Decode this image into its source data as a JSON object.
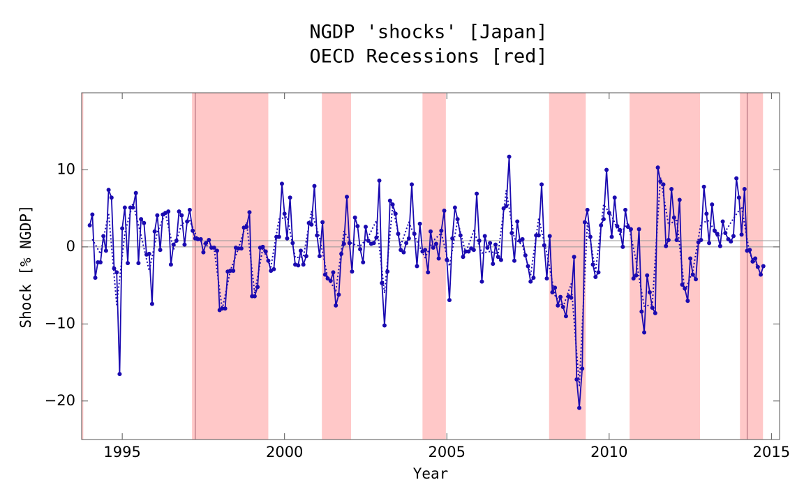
{
  "chart_data": {
    "type": "line",
    "title": "NGDP 'shocks' [Japan]",
    "subtitle": "OECD Recessions [red]",
    "xlabel": "Year",
    "ylabel": "Shock [% NGDP]",
    "xlim": [
      1993.75,
      2015.25
    ],
    "ylim": [
      -25,
      20
    ],
    "xticks": [
      1995,
      2000,
      2005,
      2010,
      2015
    ],
    "yticks": [
      {
        "value": -20,
        "label": "−20"
      },
      {
        "value": -10,
        "label": "−10"
      },
      0,
      10
    ],
    "recession_color": "#ffc8c8",
    "recessions": [
      [
        1993.75,
        1993.8
      ],
      [
        1997.15,
        1999.5
      ],
      [
        2001.15,
        2002.05
      ],
      [
        2004.25,
        2004.97
      ],
      [
        2008.15,
        2009.28
      ],
      [
        2010.63,
        2012.8
      ],
      [
        2014.03,
        2014.74
      ]
    ],
    "vlines": [
      1997.25,
      2014.25
    ],
    "hlines": [
      0,
      0.8
    ],
    "x": [
      1994,
      1994.08,
      1994.17,
      1994.25,
      1994.33,
      1994.42,
      1994.5,
      1994.58,
      1994.67,
      1994.75,
      1994.83,
      1994.92,
      1995,
      1995.08,
      1995.17,
      1995.25,
      1995.33,
      1995.42,
      1995.5,
      1995.58,
      1995.67,
      1995.75,
      1995.83,
      1995.92,
      1996,
      1996.08,
      1996.17,
      1996.25,
      1996.33,
      1996.42,
      1996.5,
      1996.58,
      1996.67,
      1996.75,
      1996.83,
      1996.92,
      1997,
      1997.08,
      1997.17,
      1997.25,
      1997.33,
      1997.42,
      1997.5,
      1997.58,
      1997.67,
      1997.75,
      1997.83,
      1997.92,
      1998,
      1998.08,
      1998.17,
      1998.25,
      1998.33,
      1998.42,
      1998.5,
      1998.58,
      1998.67,
      1998.75,
      1998.83,
      1998.92,
      1999,
      1999.08,
      1999.17,
      1999.25,
      1999.33,
      1999.42,
      1999.5,
      1999.58,
      1999.67,
      1999.75,
      1999.83,
      1999.92,
      2000,
      2000.08,
      2000.17,
      2000.25,
      2000.33,
      2000.42,
      2000.5,
      2000.58,
      2000.67,
      2000.75,
      2000.83,
      2000.92,
      2001,
      2001.08,
      2001.17,
      2001.25,
      2001.33,
      2001.42,
      2001.5,
      2001.58,
      2001.67,
      2001.75,
      2001.83,
      2001.92,
      2002,
      2002.08,
      2002.17,
      2002.25,
      2002.33,
      2002.42,
      2002.5,
      2002.58,
      2002.67,
      2002.75,
      2002.83,
      2002.92,
      2003,
      2003.08,
      2003.17,
      2003.25,
      2003.33,
      2003.42,
      2003.5,
      2003.58,
      2003.67,
      2003.75,
      2003.83,
      2003.92,
      2004,
      2004.08,
      2004.17,
      2004.25,
      2004.33,
      2004.42,
      2004.5,
      2004.58,
      2004.67,
      2004.75,
      2004.83,
      2004.92,
      2005,
      2005.08,
      2005.17,
      2005.25,
      2005.33,
      2005.42,
      2005.5,
      2005.58,
      2005.67,
      2005.75,
      2005.83,
      2005.92,
      2006,
      2006.08,
      2006.17,
      2006.25,
      2006.33,
      2006.42,
      2006.5,
      2006.58,
      2006.67,
      2006.75,
      2006.83,
      2006.92,
      2007,
      2007.08,
      2007.17,
      2007.25,
      2007.33,
      2007.42,
      2007.5,
      2007.58,
      2007.67,
      2007.75,
      2007.83,
      2007.92,
      2008,
      2008.08,
      2008.17,
      2008.25,
      2008.33,
      2008.42,
      2008.5,
      2008.58,
      2008.67,
      2008.75,
      2008.83,
      2008.92,
      2009,
      2009.08,
      2009.17,
      2009.25,
      2009.33,
      2009.42,
      2009.5,
      2009.58,
      2009.67,
      2009.75,
      2009.83,
      2009.92,
      2010,
      2010.08,
      2010.17,
      2010.25,
      2010.33,
      2010.42,
      2010.5,
      2010.58,
      2010.67,
      2010.75,
      2010.83,
      2010.92,
      2011,
      2011.08,
      2011.17,
      2011.25,
      2011.33,
      2011.42,
      2011.5,
      2011.58,
      2011.67,
      2011.75,
      2011.83,
      2011.92,
      2012,
      2012.08,
      2012.17,
      2012.25,
      2012.33,
      2012.42,
      2012.5,
      2012.58,
      2012.67,
      2012.75,
      2012.83,
      2012.92,
      2013,
      2013.08,
      2013.17,
      2013.25,
      2013.33,
      2013.42,
      2013.5,
      2013.58,
      2013.67,
      2013.75,
      2013.83,
      2013.92,
      2014,
      2014.08,
      2014.17,
      2014.25,
      2014.33,
      2014.42,
      2014.5,
      2014.58,
      2014.67,
      2014.75
    ],
    "series": [
      {
        "color": "#1a0ab0",
        "style": "solid",
        "markers": true,
        "values": [
          2.8,
          4.2,
          -4.0,
          -2.0,
          -2.0,
          1.4,
          -0.5,
          7.4,
          6.4,
          -2.8,
          -3.3,
          -16.5,
          2.4,
          5.1,
          -2.1,
          5.1,
          5.1,
          7.0,
          -2.1,
          3.6,
          3.1,
          -1.0,
          -0.9,
          -7.4,
          2.0,
          4.1,
          -0.4,
          4.2,
          4.4,
          4.6,
          -2.3,
          0.3,
          0.8,
          4.6,
          4.1,
          0.3,
          3.3,
          4.8,
          2.1,
          1.1,
          1.0,
          1.0,
          -0.7,
          0.5,
          0.9,
          -0.1,
          -0.1,
          -0.5,
          -8.2,
          -8.0,
          -8.0,
          -3.2,
          -3.1,
          -3.1,
          -0.1,
          -0.2,
          -0.2,
          2.5,
          2.6,
          4.5,
          -6.4,
          -6.4,
          -5.2,
          -0.1,
          0.0,
          -0.6,
          -1.8,
          -3.1,
          -2.9,
          1.3,
          1.3,
          8.2,
          4.3,
          1.1,
          6.4,
          0.5,
          -2.3,
          -2.4,
          -0.5,
          -2.3,
          -1.2,
          3.1,
          2.9,
          7.9,
          1.5,
          -1.2,
          3.2,
          -3.6,
          -4.1,
          -4.4,
          -3.3,
          -7.6,
          -6.2,
          -0.9,
          0.4,
          6.5,
          0.5,
          -3.2,
          3.8,
          2.7,
          -0.3,
          -2.0,
          2.6,
          0.8,
          0.4,
          0.5,
          1.2,
          8.6,
          -4.7,
          -10.2,
          -3.2,
          6.0,
          5.5,
          4.3,
          1.7,
          -0.4,
          -0.7,
          0.5,
          1.1,
          8.1,
          1.7,
          -2.5,
          3.0,
          -0.6,
          -0.4,
          -3.3,
          2.0,
          -0.1,
          0.4,
          -1.5,
          2.1,
          4.7,
          -1.7,
          -6.9,
          1.1,
          5.1,
          3.6,
          1.5,
          -1.3,
          -0.6,
          -0.6,
          -0.2,
          -0.4,
          6.9,
          0.8,
          -4.5,
          1.4,
          -0.1,
          0.5,
          -2.2,
          0.3,
          -1.3,
          -1.7,
          5.0,
          5.3,
          11.7,
          1.8,
          -1.8,
          3.3,
          0.8,
          1.0,
          -1.1,
          -2.5,
          -4.5,
          -4.0,
          1.5,
          1.5,
          8.1,
          0.2,
          -4.1,
          1.4,
          -5.9,
          -5.3,
          -7.6,
          -6.5,
          -7.8,
          -9.0,
          -6.4,
          -6.6,
          -1.3,
          -17.2,
          -20.9,
          -15.8,
          3.2,
          4.8,
          1.3,
          -2.3,
          -3.9,
          -3.3,
          2.8,
          3.6,
          10.0,
          4.4,
          1.3,
          6.4,
          2.7,
          2.2,
          0.0,
          4.8,
          2.6,
          2.3,
          -4.1,
          -3.7,
          2.3,
          -8.4,
          -11.1,
          -3.7,
          -5.9,
          -7.9,
          -8.6,
          10.3,
          8.5,
          8.1,
          0.1,
          0.9,
          7.5,
          3.8,
          0.9,
          6.1,
          -4.9,
          -5.4,
          -7.0,
          -1.5,
          -3.6,
          -4.2,
          0.6,
          0.9,
          7.8,
          4.3,
          0.5,
          5.5,
          2.1,
          1.7,
          0.1,
          3.3,
          1.8,
          1.0,
          0.7,
          1.4,
          8.9,
          6.4,
          1.6,
          7.5,
          -0.5,
          -0.4,
          -1.9,
          -1.5,
          -2.6,
          -3.6,
          -2.5
        ]
      },
      {
        "color": "#1a0ab0",
        "style": "dotted",
        "markers": false,
        "x": [
          1994.08,
          1994.33,
          1994.58,
          1994.83,
          1995.08,
          1995.33,
          1995.58,
          1995.83,
          1996.08,
          1996.33,
          1996.58,
          1996.83,
          1997.08,
          1997.33,
          1997.58,
          1997.83,
          1998.08,
          1998.33,
          1998.58,
          1998.83,
          1999.08,
          1999.33,
          1999.58,
          1999.83,
          2000.08,
          2000.33,
          2000.58,
          2000.83,
          2001.08,
          2001.33,
          2001.58,
          2001.83,
          2002.08,
          2002.33,
          2002.58,
          2002.83,
          2003.08,
          2003.33,
          2003.58,
          2003.83,
          2004.08,
          2004.33,
          2004.58,
          2004.83,
          2005.08,
          2005.33,
          2005.58,
          2005.83,
          2006.08,
          2006.33,
          2006.58,
          2006.83,
          2007.08,
          2007.33,
          2007.58,
          2007.83,
          2008.08,
          2008.33,
          2008.58,
          2008.83,
          2009.08,
          2009.33,
          2009.58,
          2009.83,
          2010.08,
          2010.33,
          2010.58,
          2010.83,
          2011.08,
          2011.33,
          2011.58,
          2011.83,
          2012.08,
          2012.33,
          2012.58,
          2012.83,
          2013.08,
          2013.33,
          2013.58,
          2013.83,
          2014.08,
          2014.33,
          2014.58
        ],
        "values": [
          1.0,
          -0.9,
          4.4,
          -7.5,
          1.8,
          5.7,
          1.5,
          -3.1,
          1.9,
          4.4,
          -0.4,
          3.0,
          3.4,
          1.0,
          0.2,
          -0.2,
          -8.1,
          -3.1,
          -0.2,
          3.2,
          -6.0,
          -0.2,
          -2.6,
          3.6,
          3.9,
          -1.4,
          -1.3,
          4.6,
          1.2,
          -4.0,
          -5.7,
          2.0,
          0.4,
          0.1,
          1.3,
          3.4,
          -6.0,
          5.3,
          0.2,
          3.2,
          0.7,
          -1.4,
          0.8,
          1.8,
          -2.5,
          3.4,
          -0.8,
          2.1,
          -0.8,
          -0.6,
          -0.9,
          7.3,
          1.1,
          0.2,
          -3.7,
          3.7,
          -0.8,
          -6.3,
          -7.8,
          -4.8,
          -18.0,
          3.1,
          -3.2,
          5.5,
          4.0,
          1.6,
          3.2,
          -1.8,
          -7.7,
          -7.5,
          9.0,
          2.8,
          3.6,
          -5.8,
          -3.1,
          3.1,
          3.4,
          1.3,
          2.0,
          3.7,
          5.2,
          -0.9,
          -2.6
        ]
      }
    ]
  }
}
